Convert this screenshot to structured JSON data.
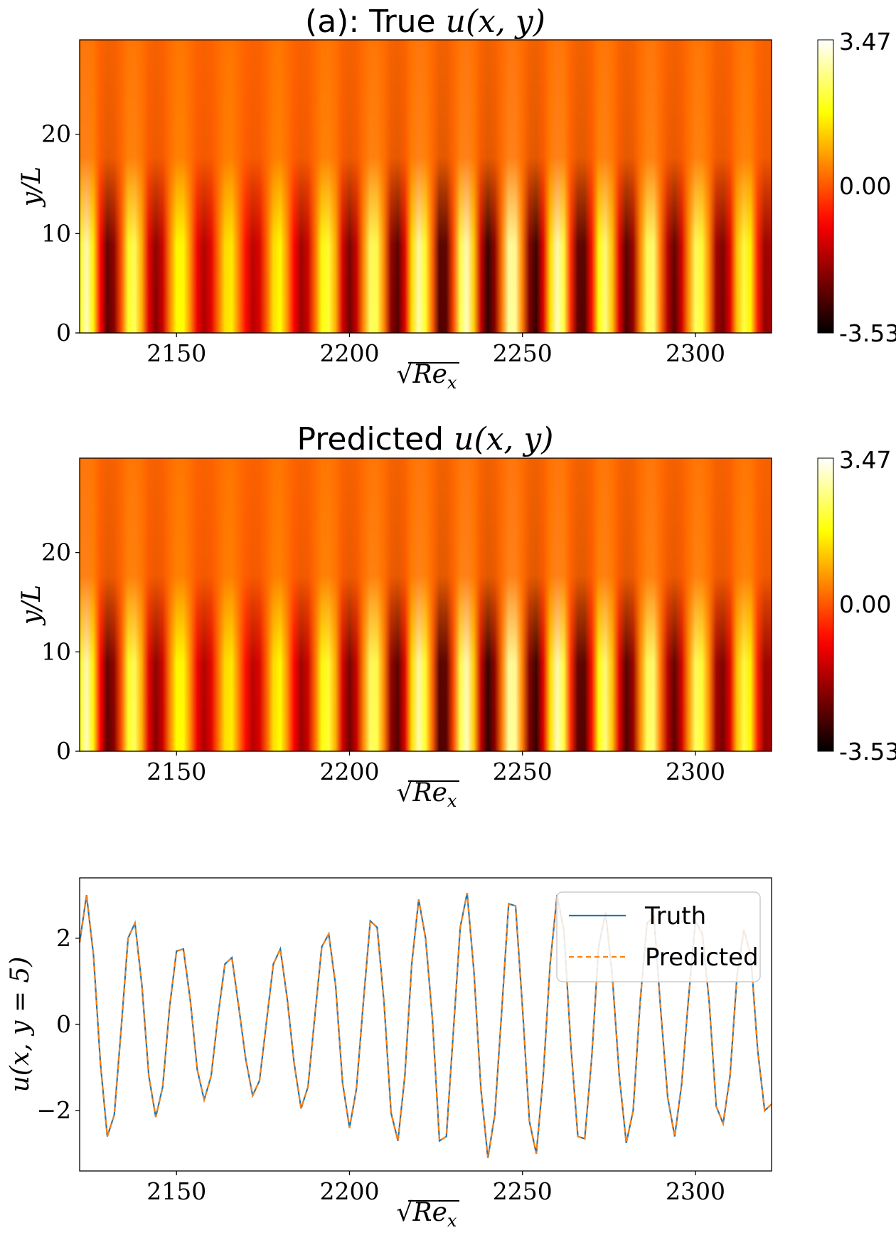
{
  "chart_data": [
    {
      "type": "heatmap",
      "title_prefix": "(a):  True",
      "title_math": "u(x, y)",
      "xlabel": "√Re_x",
      "xlabel_base": "Re",
      "xlabel_sub": "x",
      "ylabel": "y/L",
      "xlim": [
        2122,
        2322
      ],
      "ylim": [
        0,
        29.5
      ],
      "x_ticks": [
        2150,
        2200,
        2250,
        2300
      ],
      "y_ticks": [
        0,
        10,
        20
      ],
      "colormap": "hot",
      "colorbar": {
        "min_label": "-3.53",
        "mid_label": "0.00",
        "max_label": "3.47",
        "min": -3.53,
        "max": 3.47
      }
    },
    {
      "type": "heatmap",
      "title_prefix": "Predicted",
      "title_math": "u(x, y)",
      "xlabel": "√Re_x",
      "xlabel_base": "Re",
      "xlabel_sub": "x",
      "ylabel": "y/L",
      "xlim": [
        2122,
        2322
      ],
      "ylim": [
        0,
        29.5
      ],
      "x_ticks": [
        2150,
        2200,
        2250,
        2300
      ],
      "y_ticks": [
        0,
        10,
        20
      ],
      "colormap": "hot",
      "colorbar": {
        "min_label": "-3.53",
        "mid_label": "0.00",
        "max_label": "3.47",
        "min": -3.53,
        "max": 3.47
      }
    },
    {
      "type": "line",
      "xlabel": "√Re_x",
      "xlabel_base": "Re",
      "xlabel_sub": "x",
      "ylabel": "u(x, y = 5)",
      "xlim": [
        2122,
        2322
      ],
      "ylim": [
        -3.4,
        3.4
      ],
      "x_ticks": [
        2150,
        2200,
        2250,
        2300
      ],
      "y_ticks": [
        -2,
        0,
        2
      ],
      "y_tick_labels": [
        "−2",
        "0",
        "2"
      ],
      "legend_position": "top-right",
      "series": [
        {
          "name": "Truth",
          "color": "#1f77b4",
          "style": "solid",
          "x": [
            2122,
            2124,
            2126,
            2128,
            2130,
            2132,
            2134,
            2136,
            2138,
            2140,
            2142,
            2144,
            2146,
            2148,
            2150,
            2152,
            2154,
            2156,
            2158,
            2160,
            2162,
            2164,
            2166,
            2168,
            2170,
            2172,
            2174,
            2176,
            2178,
            2180,
            2182,
            2184,
            2186,
            2188,
            2190,
            2192,
            2194,
            2196,
            2198,
            2200,
            2202,
            2204,
            2206,
            2208,
            2210,
            2212,
            2214,
            2216,
            2218,
            2220,
            2222,
            2224,
            2226,
            2228,
            2230,
            2232,
            2234,
            2236,
            2238,
            2240,
            2242,
            2244,
            2246,
            2248,
            2250,
            2252,
            2254,
            2256,
            2258,
            2260,
            2262,
            2264,
            2266,
            2268,
            2270,
            2272,
            2274,
            2276,
            2278,
            2280,
            2282,
            2284,
            2286,
            2288,
            2290,
            2292,
            2294,
            2296,
            2298,
            2300,
            2302,
            2304,
            2306,
            2308,
            2310,
            2312,
            2314,
            2316,
            2318,
            2320,
            2322
          ],
          "y": [
            1.9,
            3.0,
            1.6,
            -0.9,
            -2.6,
            -2.1,
            -0.1,
            2.0,
            2.35,
            0.9,
            -1.2,
            -2.15,
            -1.45,
            0.4,
            1.7,
            1.75,
            0.55,
            -1.05,
            -1.75,
            -1.2,
            0.2,
            1.4,
            1.55,
            0.4,
            -0.8,
            -1.65,
            -1.3,
            0.05,
            1.4,
            1.75,
            0.6,
            -0.9,
            -1.95,
            -1.45,
            0.2,
            1.8,
            2.1,
            0.9,
            -1.35,
            -2.4,
            -1.5,
            0.5,
            2.4,
            2.25,
            0.5,
            -2.05,
            -2.7,
            -1.2,
            1.4,
            2.9,
            2.0,
            0.1,
            -2.7,
            -2.6,
            -0.2,
            2.25,
            3.05,
            1.2,
            -1.5,
            -3.1,
            -2.1,
            0.3,
            2.8,
            2.75,
            0.4,
            -2.25,
            -3.0,
            -1.2,
            1.4,
            3.0,
            2.15,
            -0.5,
            -2.6,
            -2.65,
            -0.8,
            1.8,
            2.6,
            1.1,
            -1.2,
            -2.75,
            -2.0,
            0.5,
            2.35,
            2.5,
            0.3,
            -1.7,
            -2.6,
            -1.4,
            0.6,
            2.4,
            2.1,
            0.5,
            -1.9,
            -2.3,
            -1.2,
            1.1,
            2.2,
            1.6,
            -0.6,
            -2.0,
            -1.85
          ]
        },
        {
          "name": "Predicted",
          "color": "#ff7f0e",
          "style": "dashed"
        }
      ]
    }
  ]
}
